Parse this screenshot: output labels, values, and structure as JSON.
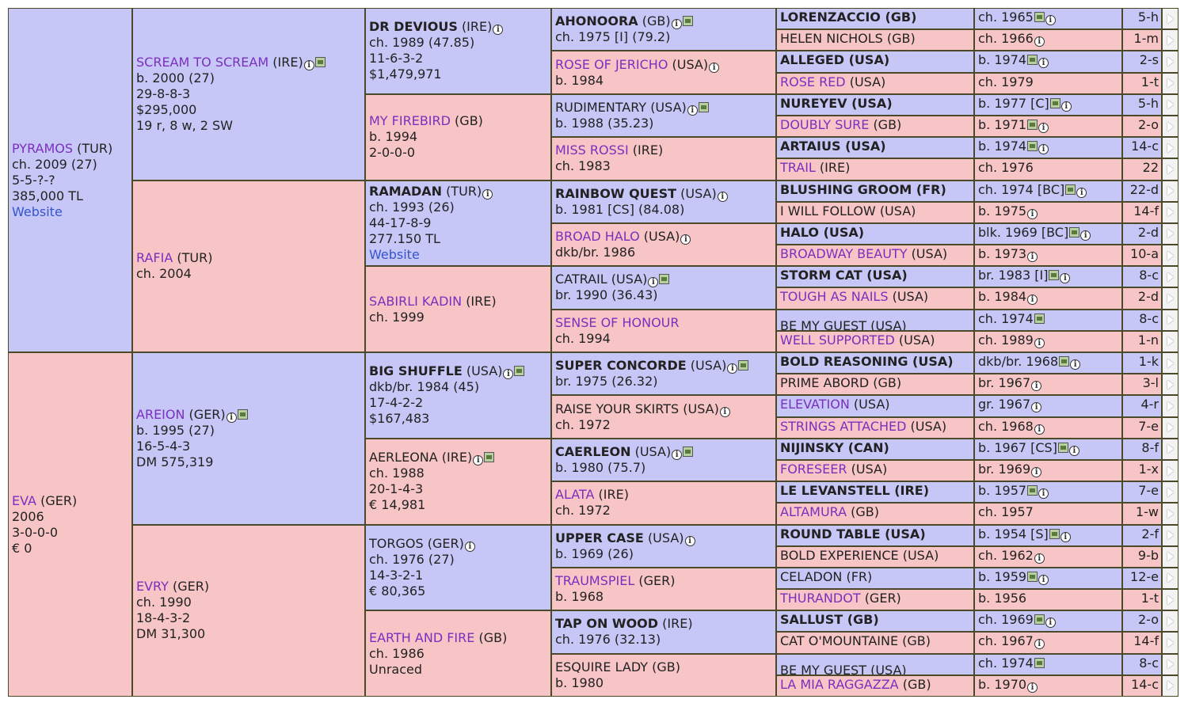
{
  "gen1": [
    {
      "name": "PYRAMOS",
      "country": "(TUR)",
      "sex": "m",
      "lines": [
        "ch. 2009 (27)",
        "5-5-?-?",
        "385,000 TL"
      ],
      "link": "Website"
    },
    {
      "name": "EVA",
      "country": "(GER)",
      "sex": "f",
      "lines": [
        "2006",
        "3-0-0-0",
        "€ 0"
      ]
    }
  ],
  "gen2": [
    {
      "name": "SCREAM TO SCREAM",
      "country": "(IRE)",
      "sex": "m",
      "icons": [
        "info",
        "photo"
      ],
      "lines": [
        "b. 2000 (27)",
        "29-8-8-3",
        "$295,000",
        "19 r, 8 w, 2 SW"
      ]
    },
    {
      "name": "RAFIA",
      "country": "(TUR)",
      "sex": "f",
      "lines": [
        "ch. 2004"
      ]
    },
    {
      "name": "AREION",
      "country": "(GER)",
      "sex": "m",
      "icons": [
        "info",
        "photo"
      ],
      "lines": [
        "b. 1995 (27)",
        "16-5-4-3",
        "DM 575,319"
      ]
    },
    {
      "name": "EVRY",
      "country": "(GER)",
      "sex": "f",
      "lines": [
        "ch. 1990",
        "18-4-3-2",
        "DM 31,300"
      ]
    }
  ],
  "gen3": [
    {
      "name": "DR DEVIOUS",
      "country": "(IRE)",
      "sex": "m",
      "bold": true,
      "icons": [
        "info"
      ],
      "lines": [
        "ch. 1989 (47.85)",
        "11-6-3-2",
        "$1,479,971"
      ]
    },
    {
      "name": "MY FIREBIRD",
      "country": "(GB)",
      "sex": "f",
      "lines": [
        "b. 1994",
        "2-0-0-0"
      ]
    },
    {
      "name": "RAMADAN",
      "country": "(TUR)",
      "sex": "m",
      "bold": true,
      "icons": [
        "info"
      ],
      "lines": [
        "ch. 1993 (26)",
        "44-17-8-9",
        "277.150 TL"
      ],
      "link": "Website"
    },
    {
      "name": "SABIRLI KADIN",
      "country": "(IRE)",
      "sex": "f",
      "lines": [
        "ch. 1999"
      ]
    },
    {
      "name": "BIG SHUFFLE",
      "country": "(USA)",
      "sex": "m",
      "bold": true,
      "icons": [
        "info",
        "photo"
      ],
      "lines": [
        "dkb/br. 1984 (45)",
        "17-4-2-2",
        "$167,483"
      ]
    },
    {
      "name": "AERLEONA",
      "country": "(IRE)",
      "sex": "f",
      "plain": true,
      "icons": [
        "info",
        "photo"
      ],
      "lines": [
        "ch. 1988",
        "20-1-4-3",
        "€ 14,981"
      ]
    },
    {
      "name": "TORGOS",
      "country": "(GER)",
      "sex": "m",
      "plain": true,
      "icons": [
        "info"
      ],
      "lines": [
        "ch. 1976 (27)",
        "14-3-2-1",
        "€ 80,365"
      ]
    },
    {
      "name": "EARTH AND FIRE",
      "country": "(GB)",
      "sex": "f",
      "lines": [
        "ch. 1986",
        "Unraced"
      ]
    }
  ],
  "gen4": [
    {
      "name": "AHONOORA",
      "country": "(GB)",
      "sex": "m",
      "bold": true,
      "icons": [
        "info",
        "photo"
      ],
      "lines": [
        "ch. 1975 [I] (79.2)"
      ]
    },
    {
      "name": "ROSE OF JERICHO",
      "country": "(USA)",
      "sex": "f",
      "icons": [
        "info"
      ],
      "lines": [
        "b. 1984"
      ]
    },
    {
      "name": "RUDIMENTARY",
      "country": "(USA)",
      "sex": "m",
      "plain": true,
      "icons": [
        "info",
        "photo"
      ],
      "lines": [
        "b. 1988 (35.23)"
      ]
    },
    {
      "name": "MISS ROSSI",
      "country": "(IRE)",
      "sex": "f",
      "lines": [
        "ch. 1983"
      ]
    },
    {
      "name": "RAINBOW QUEST",
      "country": "(USA)",
      "sex": "m",
      "bold": true,
      "icons": [
        "info"
      ],
      "lines": [
        "b. 1981 [CS] (84.08)"
      ]
    },
    {
      "name": "BROAD HALO",
      "country": "(USA)",
      "sex": "f",
      "icons": [
        "info"
      ],
      "lines": [
        "dkb/br. 1986"
      ]
    },
    {
      "name": "CATRAIL",
      "country": "(USA)",
      "sex": "m",
      "plain": true,
      "icons": [
        "info",
        "photo"
      ],
      "lines": [
        "br. 1990 (36.43)"
      ]
    },
    {
      "name": "SENSE OF HONOUR",
      "country": "",
      "sex": "f",
      "lines": [
        "ch. 1994"
      ]
    },
    {
      "name": "SUPER CONCORDE",
      "country": "(USA)",
      "sex": "m",
      "bold": true,
      "icons": [
        "info",
        "photo"
      ],
      "lines": [
        "br. 1975 (26.32)"
      ]
    },
    {
      "name": "RAISE YOUR SKIRTS",
      "country": "(USA)",
      "sex": "f",
      "plain": true,
      "icons": [
        "info"
      ],
      "lines": [
        "ch. 1972"
      ]
    },
    {
      "name": "CAERLEON",
      "country": "(USA)",
      "sex": "m",
      "bold": true,
      "icons": [
        "info",
        "photo"
      ],
      "lines": [
        "b. 1980 (75.7)"
      ]
    },
    {
      "name": "ALATA",
      "country": "(IRE)",
      "sex": "f",
      "lines": [
        "ch. 1972"
      ]
    },
    {
      "name": "UPPER CASE",
      "country": "(USA)",
      "sex": "m",
      "bold": true,
      "icons": [
        "info"
      ],
      "lines": [
        "b. 1969 (26)"
      ]
    },
    {
      "name": "TRAUMSPIEL",
      "country": "(GER)",
      "sex": "f",
      "lines": [
        "b. 1968"
      ]
    },
    {
      "name": "TAP ON WOOD",
      "country": "(IRE)",
      "sex": "m",
      "bold": true,
      "lines": [
        "ch. 1976 (32.13)"
      ]
    },
    {
      "name": "ESQUIRE LADY",
      "country": "(GB)",
      "sex": "f",
      "plain": true,
      "lines": [
        "b. 1980"
      ]
    }
  ],
  "gen5": [
    {
      "name": "LORENZACCIO (GB)",
      "sex": "m",
      "style": "bold",
      "info": "ch. 1965",
      "icons": [
        "photo",
        "info"
      ],
      "stat": "5-h"
    },
    {
      "name": "HELEN NICHOLS (GB)",
      "sex": "f",
      "style": "plain",
      "info": "ch. 1966",
      "icons": [
        "info"
      ],
      "stat": "1-m"
    },
    {
      "name": "ALLEGED (USA)",
      "sex": "m",
      "style": "bold",
      "info": "b. 1974",
      "icons": [
        "photo",
        "info"
      ],
      "stat": "2-s"
    },
    {
      "name": "ROSE RED",
      "sex": "f",
      "style": "link",
      "suffix": "(USA)",
      "info": "ch. 1979",
      "icons": [],
      "stat": "1-t"
    },
    {
      "name": "NUREYEV (USA)",
      "sex": "m",
      "style": "bold",
      "info": "b. 1977 [C]",
      "icons": [
        "photo",
        "info"
      ],
      "stat": "5-h"
    },
    {
      "name": "DOUBLY SURE",
      "sex": "f",
      "style": "link",
      "suffix": "(GB)",
      "info": "b. 1971",
      "icons": [
        "photo",
        "info"
      ],
      "stat": "2-o"
    },
    {
      "name": "ARTAIUS (USA)",
      "sex": "m",
      "style": "bold",
      "info": "b. 1974",
      "icons": [
        "photo",
        "info"
      ],
      "stat": "14-c"
    },
    {
      "name": "TRAIL",
      "sex": "f",
      "style": "link",
      "suffix": "(IRE)",
      "info": "ch. 1976",
      "icons": [],
      "stat": "22"
    },
    {
      "name": "BLUSHING GROOM (FR)",
      "sex": "m",
      "style": "bold",
      "info": "ch. 1974 [BC]",
      "icons": [
        "photo",
        "info"
      ],
      "stat": "22-d"
    },
    {
      "name": "I WILL FOLLOW (USA)",
      "sex": "f",
      "style": "plain",
      "info": "b. 1975",
      "icons": [
        "info"
      ],
      "stat": "14-f"
    },
    {
      "name": "HALO (USA)",
      "sex": "m",
      "style": "bold",
      "info": "blk. 1969 [BC]",
      "icons": [
        "photo",
        "info"
      ],
      "stat": "2-d"
    },
    {
      "name": "BROADWAY BEAUTY",
      "sex": "f",
      "style": "link",
      "suffix": "(USA)",
      "info": "b. 1973",
      "icons": [
        "info"
      ],
      "stat": "10-a"
    },
    {
      "name": "STORM CAT (USA)",
      "sex": "m",
      "style": "bold",
      "info": "br. 1983 [I]",
      "icons": [
        "photo",
        "info"
      ],
      "stat": "8-c"
    },
    {
      "name": "TOUGH AS NAILS",
      "sex": "f",
      "style": "link",
      "suffix": "(USA)",
      "info": "b. 1984",
      "icons": [
        "info"
      ],
      "stat": "2-d"
    },
    {
      "name": "BE MY GUEST (USA)",
      "sex": "m",
      "style": "plain",
      "info": "ch. 1974",
      "icons": [
        "photo"
      ],
      "stat": "8-c",
      "tall": true
    },
    {
      "name": "WELL SUPPORTED",
      "sex": "f",
      "style": "link",
      "suffix": "(USA)",
      "info": "ch. 1989",
      "icons": [
        "info"
      ],
      "stat": "1-n"
    },
    {
      "name": "BOLD REASONING (USA)",
      "sex": "m",
      "style": "bold",
      "info": "dkb/br. 1968",
      "icons": [
        "photo",
        "info"
      ],
      "stat": "1-k"
    },
    {
      "name": "PRIME ABORD (GB)",
      "sex": "f",
      "style": "plain",
      "info": "br. 1967",
      "icons": [
        "info"
      ],
      "stat": "3-l"
    },
    {
      "name": "ELEVATION",
      "sex": "m",
      "style": "link",
      "suffix": "(USA)",
      "info": "gr. 1967",
      "icons": [
        "info"
      ],
      "stat": "4-r"
    },
    {
      "name": "STRINGS ATTACHED",
      "sex": "f",
      "style": "link",
      "suffix": "(USA)",
      "info": "ch. 1968",
      "icons": [
        "info"
      ],
      "stat": "7-e"
    },
    {
      "name": "NIJINSKY (CAN)",
      "sex": "m",
      "style": "bold",
      "info": "b. 1967 [CS]",
      "icons": [
        "photo",
        "info"
      ],
      "stat": "8-f"
    },
    {
      "name": "FORESEER",
      "sex": "f",
      "style": "link",
      "suffix": "(USA)",
      "info": "br. 1969",
      "icons": [
        "info"
      ],
      "stat": "1-x"
    },
    {
      "name": "LE LEVANSTELL (IRE)",
      "sex": "m",
      "style": "bold",
      "info": "b. 1957",
      "icons": [
        "photo",
        "info"
      ],
      "stat": "7-e"
    },
    {
      "name": "ALTAMURA",
      "sex": "f",
      "style": "link",
      "suffix": "(GB)",
      "info": "ch. 1957",
      "icons": [],
      "stat": "1-w"
    },
    {
      "name": "ROUND TABLE (USA)",
      "sex": "m",
      "style": "bold",
      "info": "b. 1954 [S]",
      "icons": [
        "photo",
        "info"
      ],
      "stat": "2-f"
    },
    {
      "name": "BOLD EXPERIENCE (USA)",
      "sex": "f",
      "style": "plain",
      "info": "ch. 1962",
      "icons": [
        "info"
      ],
      "stat": "9-b"
    },
    {
      "name": "CELADON (FR)",
      "sex": "m",
      "style": "plain",
      "info": "b. 1959",
      "icons": [
        "photo",
        "info"
      ],
      "stat": "12-e"
    },
    {
      "name": "THURANDOT",
      "sex": "f",
      "style": "link",
      "suffix": "(GER)",
      "info": "b. 1956",
      "icons": [],
      "stat": "1-t"
    },
    {
      "name": "SALLUST (GB)",
      "sex": "m",
      "style": "bold",
      "info": "ch. 1969",
      "icons": [
        "photo",
        "info"
      ],
      "stat": "2-o"
    },
    {
      "name": "CAT O'MOUNTAINE (GB)",
      "sex": "f",
      "style": "plain",
      "info": "ch. 1967",
      "icons": [
        "info"
      ],
      "stat": "14-f"
    },
    {
      "name": "BE MY GUEST (USA)",
      "sex": "m",
      "style": "plain",
      "info": "ch. 1974",
      "icons": [
        "photo"
      ],
      "stat": "8-c",
      "tall": true
    },
    {
      "name": "LA MIA RAGGAZZA",
      "sex": "f",
      "style": "link",
      "suffix": "(GB)",
      "info": "b. 1970",
      "icons": [
        "info"
      ],
      "stat": "14-c"
    }
  ],
  "colors": {
    "male": "#c7c7f7",
    "female": "#f7c5c5",
    "link": "#7b2fbe",
    "web": "#3355cc",
    "border": "#4a4a2a"
  }
}
